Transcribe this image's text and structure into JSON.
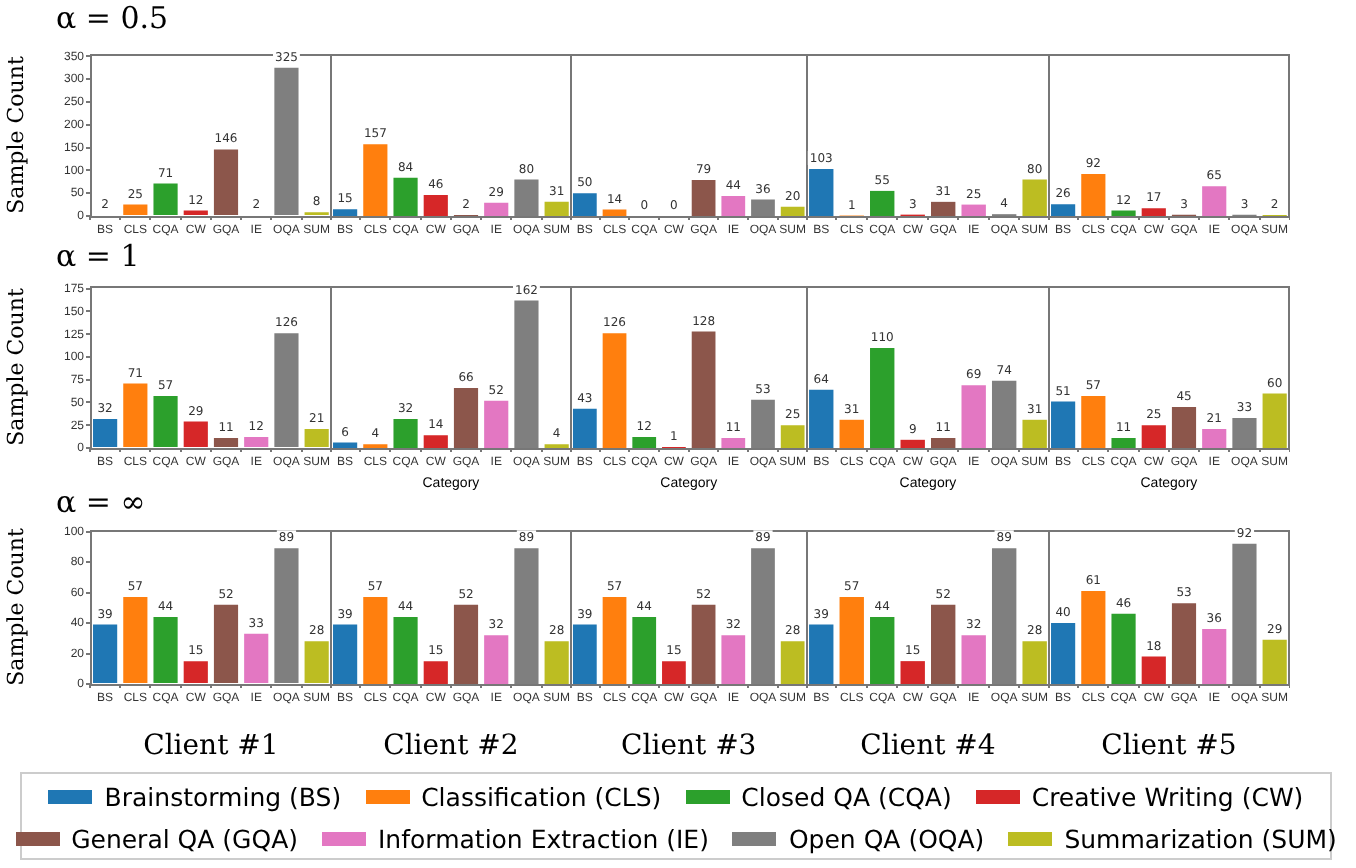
{
  "chart_data": [
    {
      "type": "bar",
      "title": "α = 0.5",
      "ylabel": "Sample Count",
      "categories": [
        "BS",
        "CLS",
        "CQA",
        "CW",
        "GQA",
        "IE",
        "OQA",
        "SUM"
      ],
      "values": [
        2,
        25,
        71,
        12,
        146,
        2,
        325,
        8
      ],
      "colors": [
        "#1f77b4",
        "#ff7f0e",
        "#2ca02c",
        "#d62728",
        "#8c564b",
        "#e377c2",
        "#7f7f7f",
        "#bcbd22"
      ],
      "ylim": [
        0,
        355
      ],
      "yticks": [
        0,
        50,
        100,
        150,
        200,
        250,
        300,
        350
      ],
      "data_labels": true
    },
    {
      "type": "bar",
      "categories": [
        "BS",
        "CLS",
        "CQA",
        "CW",
        "GQA",
        "IE",
        "OQA",
        "SUM"
      ],
      "values": [
        15,
        157,
        84,
        46,
        2,
        29,
        80,
        31
      ],
      "colors": [
        "#1f77b4",
        "#ff7f0e",
        "#2ca02c",
        "#d62728",
        "#8c564b",
        "#e377c2",
        "#7f7f7f",
        "#bcbd22"
      ],
      "ylim": [
        0,
        355
      ],
      "yticks": [
        0,
        50,
        100,
        150,
        200,
        250,
        300,
        350
      ],
      "tick_labels": "x",
      "data_labels": true
    },
    {
      "type": "bar",
      "categories": [
        "BS",
        "CLS",
        "CQA",
        "CW",
        "GQA",
        "IE",
        "OQA",
        "SUM"
      ],
      "values": [
        50,
        14,
        0,
        0,
        79,
        44,
        36,
        20
      ],
      "colors": [
        "#1f77b4",
        "#ff7f0e",
        "#2ca02c",
        "#d62728",
        "#8c564b",
        "#e377c2",
        "#7f7f7f",
        "#bcbd22"
      ],
      "ylim": [
        0,
        355
      ],
      "yticks": [
        0,
        50,
        100,
        150,
        200,
        250,
        300,
        350
      ],
      "tick_labels": "x",
      "data_labels": true
    },
    {
      "type": "bar",
      "categories": [
        "BS",
        "CLS",
        "CQA",
        "CW",
        "GQA",
        "IE",
        "OQA",
        "SUM"
      ],
      "values": [
        103,
        1,
        55,
        3,
        31,
        25,
        4,
        80
      ],
      "colors": [
        "#1f77b4",
        "#ff7f0e",
        "#2ca02c",
        "#d62728",
        "#8c564b",
        "#e377c2",
        "#7f7f7f",
        "#bcbd22"
      ],
      "ylim": [
        0,
        355
      ],
      "yticks": [
        0,
        50,
        100,
        150,
        200,
        250,
        300,
        350
      ],
      "tick_labels": "x",
      "data_labels": true
    },
    {
      "type": "bar",
      "categories": [
        "BS",
        "CLS",
        "CQA",
        "CW",
        "GQA",
        "IE",
        "OQA",
        "SUM"
      ],
      "values": [
        26,
        92,
        12,
        17,
        3,
        65,
        3,
        2
      ],
      "colors": [
        "#1f77b4",
        "#ff7f0e",
        "#2ca02c",
        "#d62728",
        "#8c564b",
        "#e377c2",
        "#7f7f7f",
        "#bcbd22"
      ],
      "ylim": [
        0,
        355
      ],
      "yticks": [
        0,
        50,
        100,
        150,
        200,
        250,
        300,
        350
      ],
      "tick_labels": "x",
      "data_labels": true
    },
    {
      "type": "bar",
      "title": "α = 1",
      "ylabel": "Sample Count",
      "categories": [
        "BS",
        "CLS",
        "CQA",
        "CW",
        "GQA",
        "IE",
        "OQA",
        "SUM"
      ],
      "values": [
        32,
        71,
        57,
        29,
        11,
        12,
        126,
        21
      ],
      "colors": [
        "#1f77b4",
        "#ff7f0e",
        "#2ca02c",
        "#d62728",
        "#8c564b",
        "#e377c2",
        "#7f7f7f",
        "#bcbd22"
      ],
      "ylim": [
        0,
        178
      ],
      "yticks": [
        0,
        25,
        50,
        75,
        100,
        125,
        150,
        175
      ],
      "data_labels": true
    },
    {
      "type": "bar",
      "xlabel": "Category",
      "categories": [
        "BS",
        "CLS",
        "CQA",
        "CW",
        "GQA",
        "IE",
        "OQA",
        "SUM"
      ],
      "values": [
        6,
        4,
        32,
        14,
        66,
        52,
        162,
        4
      ],
      "colors": [
        "#1f77b4",
        "#ff7f0e",
        "#2ca02c",
        "#d62728",
        "#8c564b",
        "#e377c2",
        "#7f7f7f",
        "#bcbd22"
      ],
      "ylim": [
        0,
        178
      ],
      "yticks": [
        0,
        25,
        50,
        75,
        100,
        125,
        150,
        175
      ],
      "tick_labels": "x",
      "data_labels": true
    },
    {
      "type": "bar",
      "xlabel": "Category",
      "categories": [
        "BS",
        "CLS",
        "CQA",
        "CW",
        "GQA",
        "IE",
        "OQA",
        "SUM"
      ],
      "values": [
        43,
        126,
        12,
        1,
        128,
        11,
        53,
        25
      ],
      "colors": [
        "#1f77b4",
        "#ff7f0e",
        "#2ca02c",
        "#d62728",
        "#8c564b",
        "#e377c2",
        "#7f7f7f",
        "#bcbd22"
      ],
      "ylim": [
        0,
        178
      ],
      "yticks": [
        0,
        25,
        50,
        75,
        100,
        125,
        150,
        175
      ],
      "tick_labels": "x",
      "data_labels": true
    },
    {
      "type": "bar",
      "xlabel": "Category",
      "categories": [
        "BS",
        "CLS",
        "CQA",
        "CW",
        "GQA",
        "IE",
        "OQA",
        "SUM"
      ],
      "values": [
        64,
        31,
        110,
        9,
        11,
        69,
        74,
        31
      ],
      "colors": [
        "#1f77b4",
        "#ff7f0e",
        "#2ca02c",
        "#d62728",
        "#8c564b",
        "#e377c2",
        "#7f7f7f",
        "#bcbd22"
      ],
      "ylim": [
        0,
        178
      ],
      "yticks": [
        0,
        25,
        50,
        75,
        100,
        125,
        150,
        175
      ],
      "tick_labels": "x",
      "data_labels": true
    },
    {
      "type": "bar",
      "xlabel": "Category",
      "categories": [
        "BS",
        "CLS",
        "CQA",
        "CW",
        "GQA",
        "IE",
        "OQA",
        "SUM"
      ],
      "values": [
        51,
        57,
        11,
        25,
        45,
        21,
        33,
        60
      ],
      "colors": [
        "#1f77b4",
        "#ff7f0e",
        "#2ca02c",
        "#d62728",
        "#8c564b",
        "#e377c2",
        "#7f7f7f",
        "#bcbd22"
      ],
      "ylim": [
        0,
        178
      ],
      "yticks": [
        0,
        25,
        50,
        75,
        100,
        125,
        150,
        175
      ],
      "tick_labels": "x",
      "data_labels": true
    },
    {
      "type": "bar",
      "title": "α = ∞",
      "ylabel": "Sample Count",
      "xlabel": "Client #1",
      "categories": [
        "BS",
        "CLS",
        "CQA",
        "CW",
        "GQA",
        "IE",
        "OQA",
        "SUM"
      ],
      "values": [
        39,
        57,
        44,
        15,
        52,
        33,
        89,
        28
      ],
      "colors": [
        "#1f77b4",
        "#ff7f0e",
        "#2ca02c",
        "#d62728",
        "#8c564b",
        "#e377c2",
        "#7f7f7f",
        "#bcbd22"
      ],
      "ylim": [
        0,
        101
      ],
      "yticks": [
        0,
        20,
        40,
        60,
        80,
        100
      ],
      "data_labels": true
    },
    {
      "type": "bar",
      "xlabel": "Client #2",
      "categories": [
        "BS",
        "CLS",
        "CQA",
        "CW",
        "GQA",
        "IE",
        "OQA",
        "SUM"
      ],
      "values": [
        39,
        57,
        44,
        15,
        52,
        32,
        89,
        28
      ],
      "colors": [
        "#1f77b4",
        "#ff7f0e",
        "#2ca02c",
        "#d62728",
        "#8c564b",
        "#e377c2",
        "#7f7f7f",
        "#bcbd22"
      ],
      "ylim": [
        0,
        101
      ],
      "yticks": [
        0,
        20,
        40,
        60,
        80,
        100
      ],
      "tick_labels": "x",
      "data_labels": true
    },
    {
      "type": "bar",
      "xlabel": "Client #3",
      "categories": [
        "BS",
        "CLS",
        "CQA",
        "CW",
        "GQA",
        "IE",
        "OQA",
        "SUM"
      ],
      "values": [
        39,
        57,
        44,
        15,
        52,
        32,
        89,
        28
      ],
      "colors": [
        "#1f77b4",
        "#ff7f0e",
        "#2ca02c",
        "#d62728",
        "#8c564b",
        "#e377c2",
        "#7f7f7f",
        "#bcbd22"
      ],
      "ylim": [
        0,
        101
      ],
      "yticks": [
        0,
        20,
        40,
        60,
        80,
        100
      ],
      "tick_labels": "x",
      "data_labels": true
    },
    {
      "type": "bar",
      "xlabel": "Client #4",
      "categories": [
        "BS",
        "CLS",
        "CQA",
        "CW",
        "GQA",
        "IE",
        "OQA",
        "SUM"
      ],
      "values": [
        39,
        57,
        44,
        15,
        52,
        32,
        89,
        28
      ],
      "colors": [
        "#1f77b4",
        "#ff7f0e",
        "#2ca02c",
        "#d62728",
        "#8c564b",
        "#e377c2",
        "#7f7f7f",
        "#bcbd22"
      ],
      "ylim": [
        0,
        101
      ],
      "yticks": [
        0,
        20,
        40,
        60,
        80,
        100
      ],
      "tick_labels": "x",
      "data_labels": true
    },
    {
      "type": "bar",
      "xlabel": "Client #5",
      "categories": [
        "BS",
        "CLS",
        "CQA",
        "CW",
        "GQA",
        "IE",
        "OQA",
        "SUM"
      ],
      "values": [
        40,
        61,
        46,
        18,
        53,
        36,
        92,
        29
      ],
      "colors": [
        "#1f77b4",
        "#ff7f0e",
        "#2ca02c",
        "#d62728",
        "#8c564b",
        "#e377c2",
        "#7f7f7f",
        "#bcbd22"
      ],
      "ylim": [
        0,
        101
      ],
      "yticks": [
        0,
        20,
        40,
        60,
        80,
        100
      ],
      "tick_labels": "x",
      "data_labels": true
    },
    {
      "type": "other",
      "categories": [
        "Brainstorming (BS)",
        "Classification (CLS)",
        "Closed QA (CQA)",
        "Creative Writing (CW)",
        "General QA (GQA)",
        "Information Extraction (IE)",
        "Open QA (OQA)",
        "Summarization (SUM)"
      ],
      "colors": [
        "#1f77b4",
        "#ff7f0e",
        "#2ca02c",
        "#d62728",
        "#8c564b",
        "#e377c2",
        "#7f7f7f",
        "#bcbd22"
      ]
    }
  ]
}
